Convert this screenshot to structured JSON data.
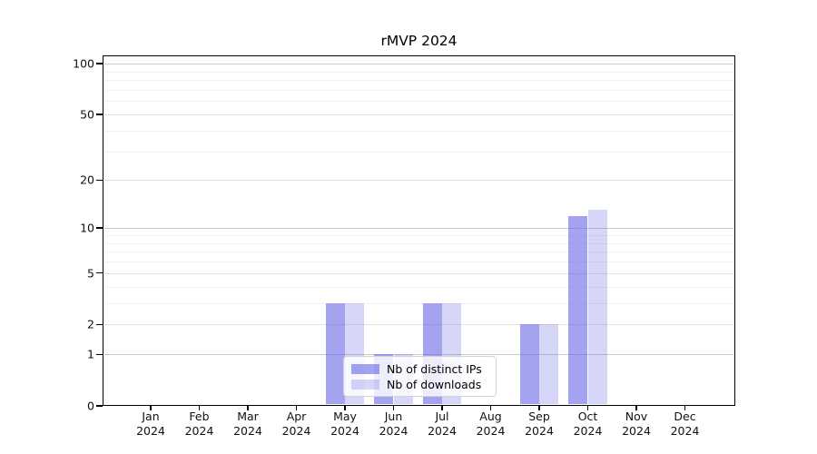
{
  "title": "rMVP 2024",
  "chart_data": {
    "type": "bar",
    "title": "rMVP 2024",
    "x_categories": [
      {
        "month": "Jan",
        "year": "2024"
      },
      {
        "month": "Feb",
        "year": "2024"
      },
      {
        "month": "Mar",
        "year": "2024"
      },
      {
        "month": "Apr",
        "year": "2024"
      },
      {
        "month": "May",
        "year": "2024"
      },
      {
        "month": "Jun",
        "year": "2024"
      },
      {
        "month": "Jul",
        "year": "2024"
      },
      {
        "month": "Aug",
        "year": "2024"
      },
      {
        "month": "Sep",
        "year": "2024"
      },
      {
        "month": "Oct",
        "year": "2024"
      },
      {
        "month": "Nov",
        "year": "2024"
      },
      {
        "month": "Dec",
        "year": "2024"
      }
    ],
    "series": [
      {
        "name": "Nb of distinct IPs",
        "color": "rgba(102,102,230,0.6)",
        "values": [
          0,
          0,
          0,
          0,
          3,
          1,
          3,
          0,
          2,
          12,
          0,
          0
        ]
      },
      {
        "name": "Nb of downloads",
        "color": "rgba(102,102,230,0.27)",
        "values": [
          0,
          0,
          0,
          0,
          3,
          1,
          3,
          0,
          2,
          13,
          0,
          0
        ]
      }
    ],
    "y_scale": "log10(value+1)",
    "y_ticks": [
      0,
      1,
      2,
      5,
      10,
      20,
      50,
      100
    ],
    "y_decade_gridlines": [
      1,
      10,
      100
    ],
    "y_minor_gridlines": [
      3,
      4,
      6,
      7,
      8,
      9,
      30,
      40,
      60,
      70,
      80,
      90
    ],
    "ylim": [
      0,
      100
    ],
    "grid": true,
    "legend_position": "lower center"
  }
}
